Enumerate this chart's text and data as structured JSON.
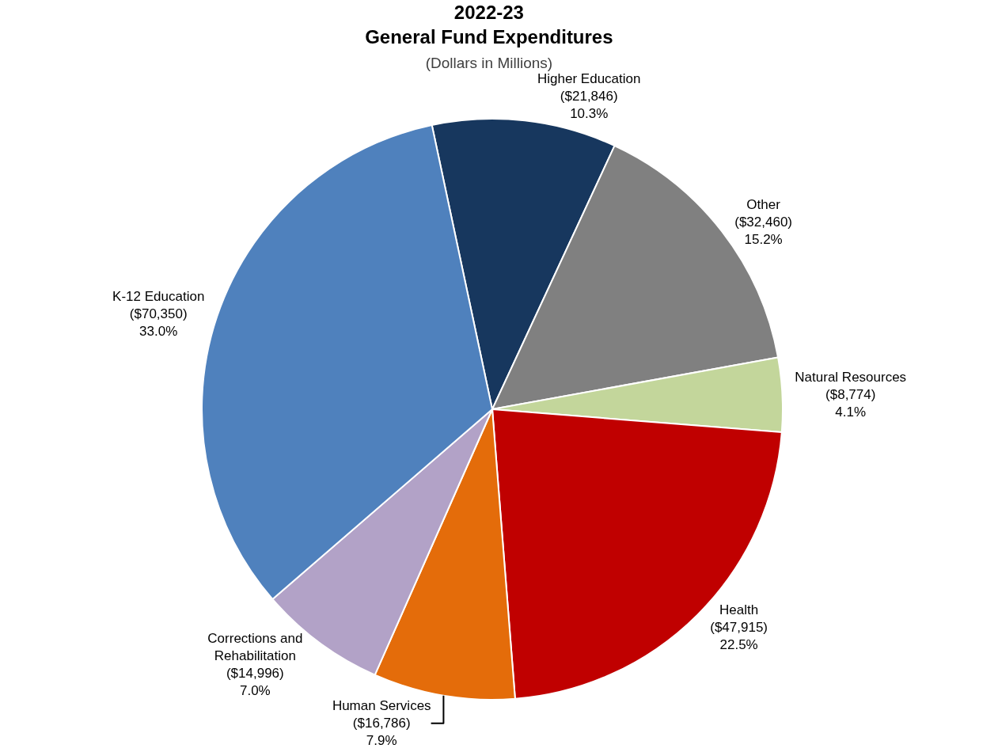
{
  "chart_data": {
    "type": "pie",
    "title": "2022-23\nGeneral Fund Expenditures",
    "subtitle": "(Dollars in Millions)",
    "categories": [
      "Higher Education",
      "Other",
      "Natural Resources",
      "Health",
      "Human Services",
      "Corrections and\nRehabilitation",
      "K-12 Education"
    ],
    "values": [
      21846,
      32460,
      8774,
      47915,
      16786,
      14996,
      70350
    ],
    "value_labels": [
      "($21,846)\n10.3%",
      "($32,460)\n15.2%",
      "($8,774)\n4.1%",
      "($47,915)\n22.5%",
      "($16,786)\n7.9%",
      "($14,996)\n7.0%",
      "($70,350)\n33.0%"
    ],
    "colors": [
      "#17375e",
      "#808080",
      "#c3d69b",
      "#c00000",
      "#e46c0a",
      "#b2a2c7",
      "#4f81bd"
    ],
    "legend": false
  }
}
